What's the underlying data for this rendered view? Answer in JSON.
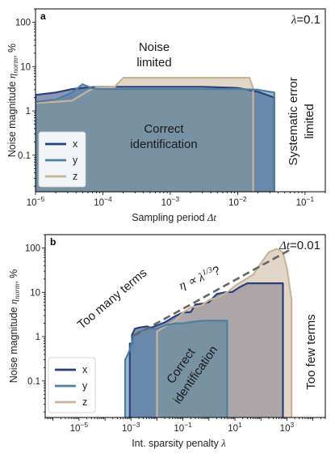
{
  "colors": {
    "x": "#2a3f7e",
    "y": "#4e7f9e",
    "z": "#c9b49a"
  },
  "chart_data": [
    {
      "type": "area",
      "panel_label": "a",
      "corner_label": "λ=0.1",
      "xlabel": "Sampling period Δt",
      "ylabel": "Noise magnitude η_norm, %",
      "x_scale": "log",
      "y_scale": "log",
      "xlim": [
        1e-05,
        0.2
      ],
      "ylim": [
        0.015,
        200
      ],
      "x_ticks": [
        "10^-5",
        "10^-4",
        "10^-3",
        "10^-2",
        "10^-1"
      ],
      "y_ticks": [
        "0.1",
        "1",
        "10",
        "100"
      ],
      "annotations": [
        "Noise",
        "limited",
        "Correct",
        "identification",
        "Systematic error",
        "limited"
      ],
      "legend_position": "lower-left",
      "series": [
        {
          "name": "x",
          "x": [
            1e-05,
            1e-05,
            2e-05,
            3.5e-05,
            6e-05,
            0.0001,
            0.0002,
            0.0005,
            0.001,
            0.003,
            0.01,
            0.02,
            0.035,
            0.035
          ],
          "y": [
            0.015,
            2.3,
            2.6,
            3.1,
            3.4,
            3.5,
            3.5,
            3.5,
            3.5,
            3.5,
            3.3,
            2.7,
            2.0,
            0.015
          ]
        },
        {
          "name": "y",
          "x": [
            1e-05,
            1e-05,
            2e-05,
            3.5e-05,
            5e-05,
            7e-05,
            0.0001,
            0.0003,
            0.001,
            0.003,
            0.01,
            0.02,
            0.035,
            0.035
          ],
          "y": [
            0.015,
            1.6,
            1.8,
            2.6,
            4.0,
            3.2,
            3.1,
            3.1,
            3.1,
            3.1,
            3.1,
            3.0,
            2.6,
            0.015
          ]
        },
        {
          "name": "z",
          "x": [
            1e-05,
            1e-05,
            3.5e-05,
            6e-05,
            8e-05,
            0.00015,
            0.0002,
            0.001,
            0.003,
            0.008,
            0.015,
            0.017,
            0.017
          ],
          "y": [
            0.015,
            1.5,
            1.7,
            2.8,
            3.4,
            3.5,
            5.6,
            5.6,
            5.6,
            5.6,
            5.6,
            3.2,
            0.015
          ]
        }
      ]
    },
    {
      "type": "area",
      "panel_label": "b",
      "corner_label": "Δt=0.01",
      "xlabel": "Int. sparsity penalty λ",
      "ylabel": "Noise magnitude η_norm, %",
      "x_scale": "log",
      "y_scale": "log",
      "xlim": [
        5e-07,
        30000
      ],
      "ylim": [
        0.015,
        200
      ],
      "x_ticks": [
        "10^-5",
        "10^-3",
        "10^-1",
        "10^1",
        "10^3"
      ],
      "y_ticks": [
        "0.1",
        "1",
        "10",
        "100"
      ],
      "annotations": [
        "Too many terms",
        "η ∝ λ^(1/3)?",
        "Correct",
        "identification",
        "Too few terms"
      ],
      "trend_line": {
        "x": [
          0.0013,
          1500
        ],
        "y": [
          1.05,
          95
        ]
      },
      "legend_position": "lower-left",
      "series": [
        {
          "name": "x",
          "x": [
            0.0009,
            0.0009,
            0.0011,
            0.0011,
            0.0014,
            0.002,
            0.004,
            0.006,
            0.008,
            0.02,
            0.05,
            0.1,
            0.2,
            0.3,
            0.6,
            1,
            2,
            4,
            8,
            15,
            30,
            200,
            700,
            700
          ],
          "y": [
            0.015,
            0.7,
            0.7,
            1.1,
            1.5,
            1.6,
            1.7,
            1.6,
            1.7,
            2.1,
            2.9,
            3.5,
            3.6,
            5.3,
            5.6,
            6.0,
            9.2,
            10.0,
            10.2,
            13.0,
            16.0,
            16.0,
            16.0,
            0.015
          ]
        },
        {
          "name": "y",
          "x": [
            0.0006,
            0.0006,
            0.0009,
            0.0013,
            0.002,
            0.004,
            0.006,
            0.008,
            0.01,
            0.02,
            0.05,
            0.1,
            0.3,
            0.6,
            1,
            3,
            5,
            5
          ],
          "y": [
            0.015,
            0.3,
            0.5,
            1.1,
            1.3,
            1.5,
            1.5,
            1.5,
            1.5,
            1.8,
            2.0,
            2.0,
            2.2,
            2.3,
            2.3,
            2.3,
            2.3,
            0.015
          ]
        },
        {
          "name": "z",
          "x": [
            0.01,
            0.01,
            0.02,
            0.05,
            0.1,
            0.2,
            0.5,
            1,
            2,
            5,
            10,
            20,
            50,
            100,
            200,
            400,
            700,
            1000,
            1500,
            1500
          ],
          "y": [
            0.015,
            1.3,
            1.7,
            2.3,
            3.5,
            4.6,
            5.0,
            6.7,
            7.5,
            10.0,
            14.0,
            18.0,
            25.0,
            45.0,
            80.0,
            95.0,
            80.0,
            35.0,
            7.0,
            0.015
          ]
        }
      ]
    }
  ]
}
